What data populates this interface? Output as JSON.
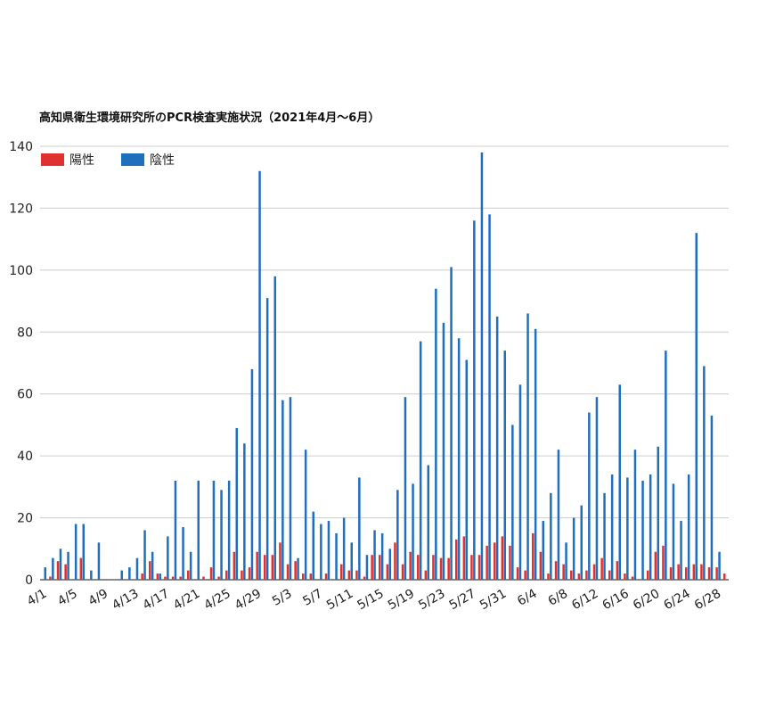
{
  "chart_data": {
    "type": "bar",
    "title": "高知県衛生環境研究所のPCR検査実施状況（2021年4月～6月）",
    "xlabel": "",
    "ylabel": "",
    "ylim": [
      0,
      140
    ],
    "yticks": [
      "0",
      "20",
      "40",
      "60",
      "80",
      "100",
      "120",
      "140"
    ],
    "grid": true,
    "legend": "top-left",
    "categories": [
      "4/1",
      "4/2",
      "4/3",
      "4/4",
      "4/5",
      "4/6",
      "4/7",
      "4/8",
      "4/9",
      "4/10",
      "4/11",
      "4/12",
      "4/13",
      "4/14",
      "4/15",
      "4/16",
      "4/17",
      "4/18",
      "4/19",
      "4/20",
      "4/21",
      "4/22",
      "4/23",
      "4/24",
      "4/25",
      "4/26",
      "4/27",
      "4/28",
      "4/29",
      "4/30",
      "5/1",
      "5/2",
      "5/3",
      "5/4",
      "5/5",
      "5/6",
      "5/7",
      "5/8",
      "5/9",
      "5/10",
      "5/11",
      "5/12",
      "5/13",
      "5/14",
      "5/15",
      "5/16",
      "5/17",
      "5/18",
      "5/19",
      "5/20",
      "5/21",
      "5/22",
      "5/23",
      "5/24",
      "5/25",
      "5/26",
      "5/27",
      "5/28",
      "5/29",
      "5/30",
      "5/31",
      "6/1",
      "6/2",
      "6/3",
      "6/4",
      "6/5",
      "6/6",
      "6/7",
      "6/8",
      "6/9",
      "6/10",
      "6/11",
      "6/12",
      "6/13",
      "6/14",
      "6/15",
      "6/16",
      "6/17",
      "6/18",
      "6/19",
      "6/20",
      "6/21",
      "6/22",
      "6/23",
      "6/24",
      "6/25",
      "6/26",
      "6/27",
      "6/28",
      "6/29",
      "6/30"
    ],
    "xtick_labels": [
      "4/1",
      "4/5",
      "4/9",
      "4/13",
      "4/17",
      "4/21",
      "4/25",
      "4/29",
      "5/3",
      "5/7",
      "5/11",
      "5/15",
      "5/19",
      "5/23",
      "5/27",
      "5/31",
      "6/4",
      "6/8",
      "6/12",
      "6/16",
      "6/20",
      "6/24",
      "6/28"
    ],
    "series": [
      {
        "name": "陽性",
        "color": "#e03131",
        "values": [
          0,
          1,
          6,
          5,
          0,
          7,
          0,
          0,
          0,
          0,
          0,
          0,
          0,
          2,
          6,
          2,
          1,
          1,
          1,
          3,
          0,
          1,
          4,
          1,
          3,
          9,
          3,
          4,
          9,
          8,
          8,
          12,
          5,
          6,
          2,
          2,
          0,
          2,
          0,
          5,
          3,
          3,
          1,
          8,
          8,
          5,
          12,
          5,
          9,
          8,
          3,
          8,
          7,
          7,
          13,
          14,
          8,
          8,
          11,
          12,
          14,
          11,
          4,
          3,
          15,
          9,
          2,
          6,
          5,
          3,
          2,
          3,
          5,
          7,
          3,
          6,
          2,
          1,
          0,
          3,
          9,
          11,
          4,
          5,
          4,
          5,
          5,
          4,
          4,
          2,
          0
        ]
      },
      {
        "name": "陰性",
        "color": "#1f6fbf",
        "values": [
          4,
          7,
          10,
          9,
          18,
          18,
          3,
          12,
          0,
          0,
          3,
          4,
          7,
          16,
          9,
          2,
          14,
          32,
          17,
          9,
          32,
          0,
          32,
          29,
          32,
          49,
          44,
          68,
          132,
          91,
          98,
          58,
          59,
          7,
          42,
          22,
          18,
          19,
          15,
          20,
          12,
          33,
          8,
          16,
          15,
          10,
          29,
          59,
          31,
          77,
          37,
          94,
          83,
          101,
          78,
          71,
          116,
          138,
          118,
          85,
          74,
          50,
          63,
          86,
          81,
          19,
          28,
          42,
          12,
          20,
          24,
          54,
          59,
          28,
          34,
          63,
          33,
          42,
          32,
          34,
          43,
          74,
          31,
          19,
          34,
          112,
          69,
          53,
          9,
          0,
          0
        ]
      }
    ]
  }
}
